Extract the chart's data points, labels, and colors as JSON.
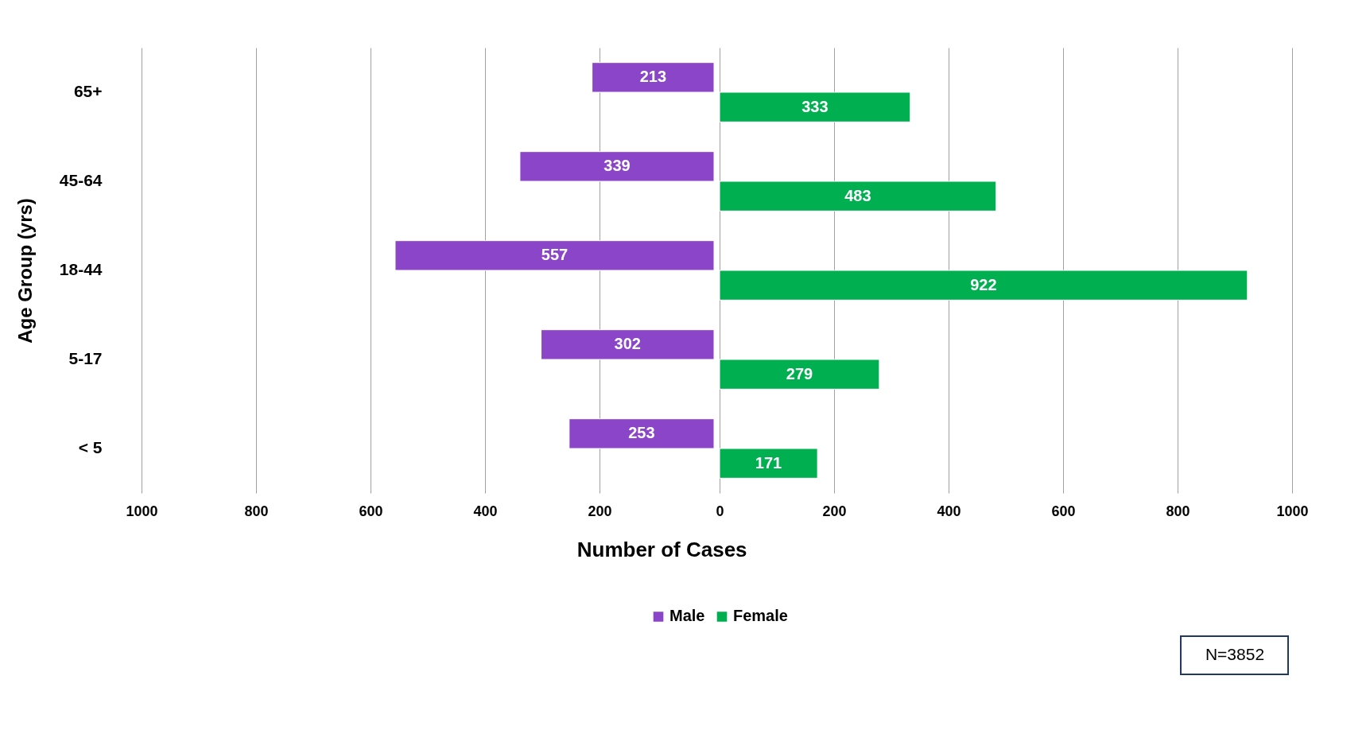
{
  "chart_data": [
    {
      "type": "bar",
      "orientation": "horizontal",
      "categories": [
        "65+",
        "45-64",
        "18-44",
        "5-17",
        "< 5"
      ],
      "series": [
        {
          "name": "Male",
          "color": "#8b45c8",
          "values": [
            213,
            339,
            557,
            302,
            253
          ]
        }
      ],
      "data_labels": true,
      "xlim": [
        1000,
        0
      ],
      "xticks": [
        1000,
        800,
        600,
        400,
        200
      ],
      "xlabel": "Number of Cases",
      "ylabel": "Age Group (yrs)",
      "grid": "x",
      "legend": "bottom"
    },
    {
      "type": "bar",
      "orientation": "horizontal",
      "categories": [
        null,
        null,
        null,
        null,
        null
      ],
      "series": [
        {
          "name": "Female",
          "color": "#00b050",
          "values": [
            333,
            483,
            922,
            279,
            171
          ]
        }
      ],
      "data_labels": true,
      "xlim": [
        0,
        1000
      ],
      "xticks": [
        0,
        200,
        400,
        600,
        800,
        1000
      ],
      "grid": "x",
      "tick_labels": "x",
      "legend": "bottom",
      "annotations": [
        "N=3852"
      ]
    }
  ]
}
